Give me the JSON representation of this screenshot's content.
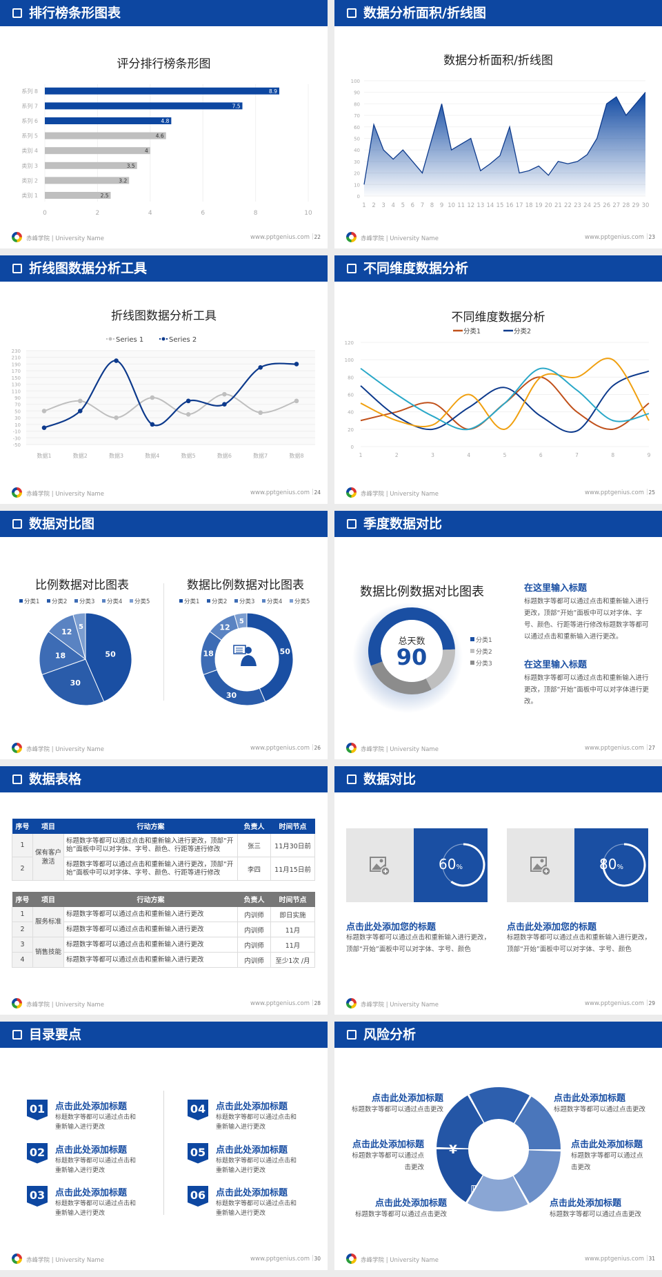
{
  "footer": {
    "school": "赤峰学院 | University Name",
    "website": "www.pptgenius.com"
  },
  "slides": [
    {
      "title": "排行榜条形图表",
      "page": "22"
    },
    {
      "title": "数据分析面积/折线图",
      "page": "23"
    },
    {
      "title": "折线图数据分析工具",
      "page": "24"
    },
    {
      "title": "不同维度数据分析",
      "page": "25"
    },
    {
      "title": "数据对比图",
      "page": "26"
    },
    {
      "title": "季度数据对比",
      "page": "27"
    },
    {
      "title": "数据表格",
      "page": "28"
    },
    {
      "title": "数据对比",
      "page": "29"
    },
    {
      "title": "目录要点",
      "page": "30"
    },
    {
      "title": "风险分析",
      "page": "31"
    }
  ],
  "chart_data": [
    {
      "type": "bar",
      "orientation": "horizontal",
      "title": "评分排行榜条形图",
      "categories": [
        "类别 1",
        "类别 2",
        "类别 3",
        "类别 4",
        "系列 5",
        "系列 6",
        "系列 7",
        "系列 8"
      ],
      "values": [
        2.5,
        3.2,
        3.5,
        4,
        4.6,
        4.8,
        7.5,
        8.9
      ],
      "colors": [
        "#bfbfbf",
        "#bfbfbf",
        "#bfbfbf",
        "#bfbfbf",
        "#bfbfbf",
        "#0d47a1",
        "#0d47a1",
        "#0d47a1"
      ],
      "xlim": [
        0,
        10
      ],
      "xticks": [
        0,
        2,
        4,
        6,
        8,
        10
      ],
      "data_labels": true
    },
    {
      "type": "area",
      "title": "数据分析面积/折线图",
      "x": [
        1,
        2,
        3,
        4,
        5,
        6,
        7,
        8,
        9,
        10,
        11,
        12,
        13,
        14,
        15,
        16,
        17,
        18,
        19,
        20,
        21,
        22,
        23,
        24,
        25,
        26,
        27,
        28,
        29,
        30
      ],
      "values": [
        10,
        62,
        40,
        32,
        40,
        30,
        20,
        50,
        80,
        40,
        45,
        50,
        22,
        28,
        35,
        60,
        20,
        22,
        26,
        18,
        30,
        28,
        30,
        36,
        50,
        80,
        86,
        70,
        80,
        90
      ],
      "ylim": [
        0,
        100
      ],
      "yticks": [
        0,
        10,
        20,
        30,
        40,
        50,
        60,
        70,
        80,
        90,
        100
      ],
      "color": "#0d3a8c"
    },
    {
      "type": "line",
      "title": "折线图数据分析工具",
      "smooth": true,
      "categories": [
        "数据1",
        "数据2",
        "数据3",
        "数据4",
        "数据5",
        "数据6",
        "数据7",
        "数据8"
      ],
      "series": [
        {
          "name": "Series 1",
          "values": [
            50,
            80,
            30,
            90,
            40,
            100,
            45,
            80
          ],
          "color": "#bfbfbf"
        },
        {
          "name": "Series 2",
          "values": [
            0,
            50,
            200,
            10,
            80,
            70,
            180,
            190
          ],
          "color": "#0d3a8c"
        }
      ],
      "ylim": [
        -50,
        230
      ],
      "yticks": [
        -50,
        -30,
        -10,
        10,
        30,
        50,
        70,
        90,
        110,
        130,
        150,
        170,
        190,
        210,
        230
      ],
      "legend": "top"
    },
    {
      "type": "line",
      "title": "不同维度数据分析",
      "smooth": true,
      "x": [
        1,
        2,
        3,
        4,
        5,
        6,
        7,
        8,
        9
      ],
      "series": [
        {
          "name": "分类1",
          "values": [
            30,
            40,
            50,
            20,
            50,
            80,
            40,
            20,
            50
          ],
          "color": "#c0501a"
        },
        {
          "name": "分类2",
          "values": [
            70,
            35,
            20,
            45,
            68,
            35,
            18,
            70,
            87
          ],
          "color": "#0d3a8c"
        },
        {
          "values": [
            50,
            30,
            25,
            60,
            20,
            80,
            80,
            100,
            30
          ],
          "color": "#f0a010"
        },
        {
          "values": [
            90,
            60,
            35,
            20,
            50,
            90,
            65,
            30,
            38
          ],
          "color": "#2aa8c8"
        }
      ],
      "ylim": [
        0,
        120
      ],
      "yticks": [
        0,
        20,
        40,
        60,
        80,
        100,
        120
      ],
      "legend": "top"
    },
    {
      "type": "pie",
      "title": "比例数据对比图表",
      "categories": [
        "分类1",
        "分类2",
        "分类3",
        "分类4",
        "分类5"
      ],
      "values": [
        50,
        30,
        18,
        12,
        5
      ],
      "colors": [
        "#1a4fa3",
        "#2a5caa",
        "#3d6cb5",
        "#5a83c2",
        "#7b9dd0"
      ],
      "legend": "top"
    },
    {
      "type": "donut",
      "title": "数据比例数据对比图表",
      "categories": [
        "分类1",
        "分类2",
        "分类3",
        "分类4",
        "分类5"
      ],
      "values": [
        50,
        30,
        18,
        12,
        5
      ],
      "colors": [
        "#1a4fa3",
        "#2a5caa",
        "#3d6cb5",
        "#5a83c2",
        "#7b9dd0"
      ],
      "legend": "top",
      "center_icon": "presenter-icon"
    },
    {
      "type": "donut",
      "title": "数据比例数据对比图表",
      "categories": [
        "分类1",
        "分类2",
        "分类3"
      ],
      "values": [
        55,
        18,
        27
      ],
      "colors": [
        "#1a4fa3",
        "#bfbfbf",
        "#8c8c8c"
      ],
      "legend": "right",
      "center_label": "总天数",
      "center_value": "90"
    }
  ],
  "quarter": {
    "blocks": [
      {
        "heading": "在这里输入标题",
        "text": "标题数字等都可以通过点击和重新输入进行更改，顶部“开始”面板中可以对字体、字号、颜色、行距等进行修改标题数字等都可以通过点击和重新输入进行更改。"
      },
      {
        "heading": "在这里输入标题",
        "text": "标题数字等都可以通过点击和重新输入进行更改，顶部“开始”面板中可以对字体进行更改。"
      }
    ]
  },
  "tables": {
    "headers": [
      "序号",
      "项目",
      "行动方案",
      "负责人",
      "时间节点"
    ],
    "table1": {
      "group": "保有客户激活",
      "rows": [
        {
          "no": "1",
          "plan": "标题数字等都可以通过点击和重新输入进行更改，顶部“开始”面板中可以对字体、字号、颜色、行距等进行修改",
          "owner": "张三",
          "time": "11月30日前"
        },
        {
          "no": "2",
          "plan": "标题数字等都可以通过点击和重新输入进行更改，顶部“开始”面板中可以对字体、字号、颜色、行距等进行修改",
          "owner": "李四",
          "time": "11月15日前"
        }
      ]
    },
    "table2": {
      "groups": [
        "服务标准",
        "销售技能"
      ],
      "rows": [
        {
          "no": "1",
          "plan": "标题数字等都可以通过点击和重新输入进行更改",
          "owner": "内训师",
          "time": "即日实施"
        },
        {
          "no": "2",
          "plan": "标题数字等都可以通过点击和重新输入进行更改",
          "owner": "内训师",
          "time": "11月"
        },
        {
          "no": "3",
          "plan": "标题数字等都可以通过点击和重新输入进行更改",
          "owner": "内训师",
          "time": "11月"
        },
        {
          "no": "4",
          "plan": "标题数字等都可以通过点击和重新输入进行更改",
          "owner": "内训师",
          "time": "至少1次 /月"
        }
      ]
    }
  },
  "compare": {
    "cards": [
      {
        "percent": 60,
        "value": "60",
        "unit": "%",
        "heading": "点击此处添加您的标题",
        "text": "标题数字等都可以通过点击和重新输入进行更改，顶部“开始”面板中可以对字体、字号、颜色",
        "image_icon": "add-image-icon"
      },
      {
        "percent": 80,
        "value": "80",
        "unit": "%",
        "heading": "点击此处添加您的标题",
        "text": "标题数字等都可以通过点击和重新输入进行更改，顶部“开始”面板中可以对字体、字号、颜色",
        "image_icon": "add-image-icon"
      }
    ]
  },
  "toc": {
    "items": [
      {
        "num": "01",
        "heading": "点击此处添加标题",
        "text": "标题数字等都可以通过点击和重新输入进行更改"
      },
      {
        "num": "02",
        "heading": "点击此处添加标题",
        "text": "标题数字等都可以通过点击和重新输入进行更改"
      },
      {
        "num": "03",
        "heading": "点击此处添加标题",
        "text": "标题数字等都可以通过点击和重新输入进行更改"
      },
      {
        "num": "04",
        "heading": "点击此处添加标题",
        "text": "标题数字等都可以通过点击和重新输入进行更改"
      },
      {
        "num": "05",
        "heading": "点击此处添加标题",
        "text": "标题数字等都可以通过点击和重新输入进行更改"
      },
      {
        "num": "06",
        "heading": "点击此处添加标题",
        "text": "标题数字等都可以通过点击和重新输入进行更改"
      }
    ]
  },
  "risk": {
    "items": [
      {
        "heading": "点击此处添加标题",
        "text": "标题数字等都可以通过点击更改",
        "icon": "money-bag-icon",
        "color": "#1e4fa0"
      },
      {
        "heading": "点击此处添加标题",
        "text": "标题数字等都可以通过点击更改",
        "icon": "coins-icon",
        "color": "#2456a6"
      },
      {
        "heading": "点击此处添加标题",
        "text": "标题数字等都可以通过点击更改",
        "icon": "users-icon",
        "color": "#2d5fae"
      },
      {
        "heading": "点击此处添加标题",
        "text": "标题数字等都可以通过点击更改",
        "icon": "pie-chart-icon",
        "color": "#4a76bb"
      },
      {
        "heading": "点击此处添加标题",
        "text": "标题数字等都可以通过点击更改",
        "icon": "building-icon",
        "color": "#6c8fc8"
      },
      {
        "heading": "点击此处添加标题",
        "text": "标题数字等都可以通过点击更改",
        "icon": "yen-hand-icon",
        "color": "#8aa6d4"
      }
    ]
  }
}
